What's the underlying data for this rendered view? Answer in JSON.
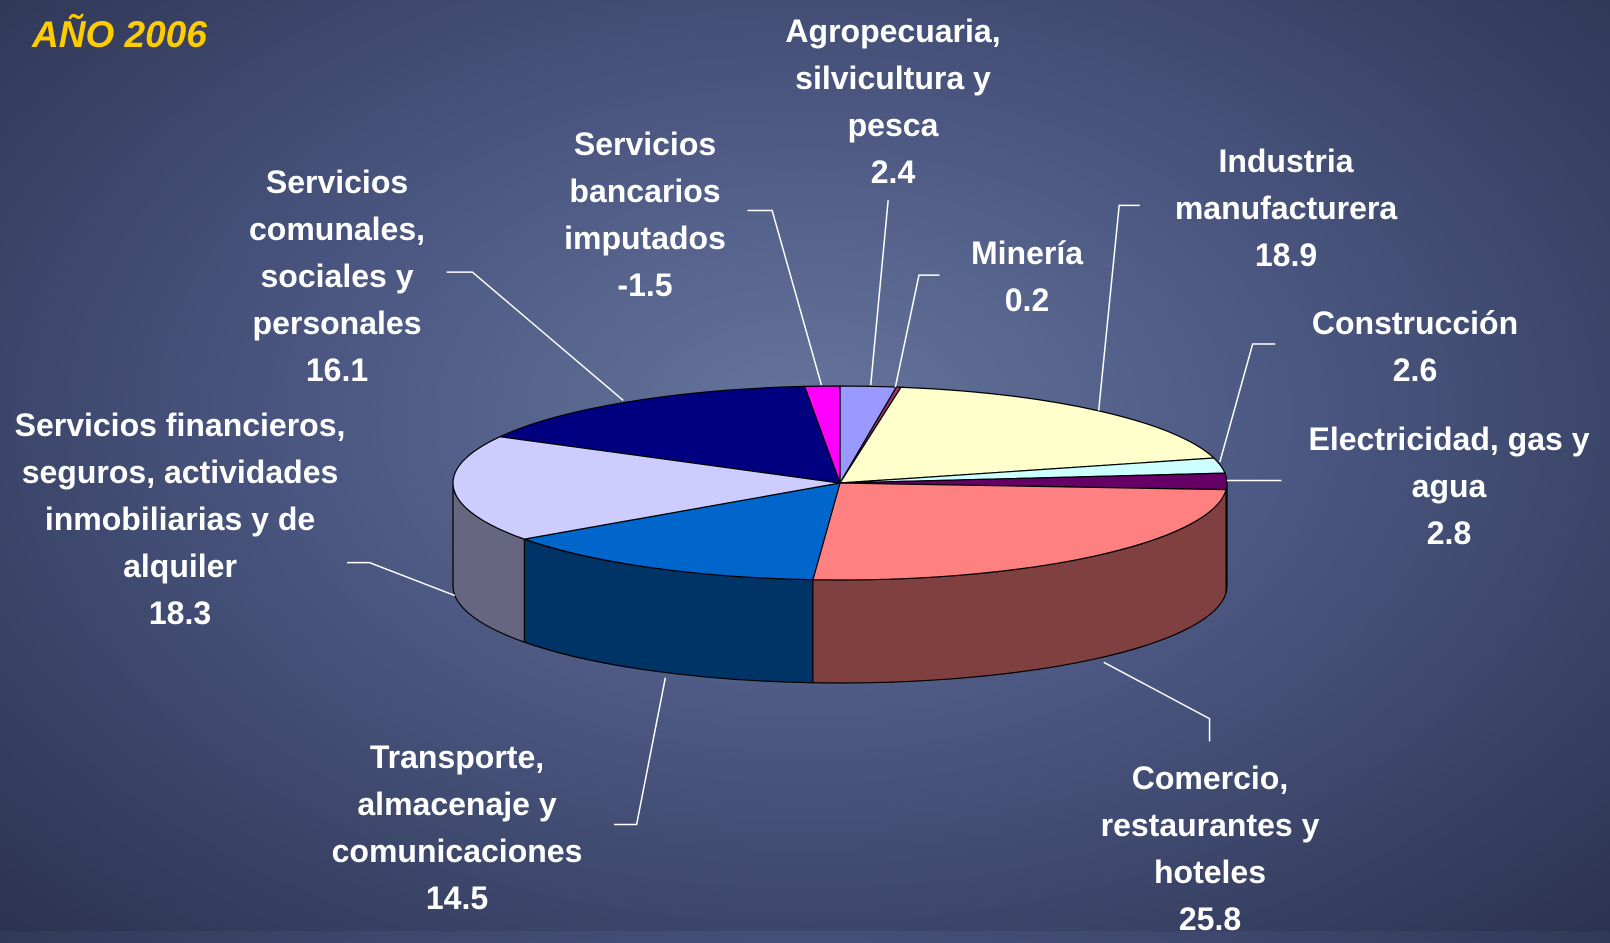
{
  "chart_data": {
    "type": "pie",
    "title": "AÑO 2006",
    "categories": [
      "Agropecuaria, silvicultura y pesca",
      "Minería",
      "Industria manufacturera",
      "Construcción",
      "Electricidad, gas y agua",
      "Comercio, restaurantes y hoteles",
      "Transporte, almacenaje y comunicaciones",
      "Servicios financieros, seguros, actividades inmobiliarias y de alquiler",
      "Servicios comunales, sociales y personales",
      "Servicios bancarios imputados"
    ],
    "values": [
      2.4,
      0.2,
      18.9,
      2.6,
      2.8,
      25.8,
      14.5,
      18.3,
      16.1,
      -1.5
    ],
    "colors": [
      "#9999ff",
      "#993366",
      "#ffffcc",
      "#ccffff",
      "#660066",
      "#ff8080",
      "#0066cc",
      "#ccccff",
      "#000080",
      "#ff00ff"
    ]
  }
}
